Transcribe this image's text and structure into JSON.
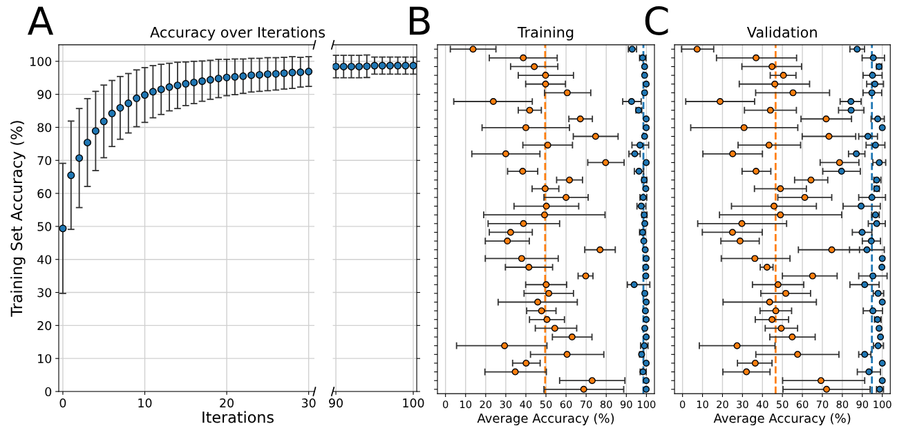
{
  "chart_data": [
    {
      "type": "scatter",
      "title": "Accuracy over Iterations",
      "xlabel": "Iterations",
      "ylabel": "Training Set Accuracy (%)",
      "annotations": [
        "A"
      ],
      "x": [
        0,
        1,
        2,
        3,
        4,
        5,
        6,
        7,
        8,
        9,
        10,
        11,
        12,
        13,
        14,
        15,
        16,
        17,
        18,
        19,
        20,
        21,
        22,
        23,
        24,
        25,
        26,
        27,
        28,
        29,
        30
      ],
      "series": [
        {
          "color": "#1f77b4",
          "values": [
            49.4,
            65.5,
            70.7,
            75.4,
            78.9,
            81.8,
            84.2,
            85.9,
            87.3,
            88.8,
            89.8,
            90.8,
            91.5,
            92.2,
            92.7,
            93.2,
            93.6,
            94.0,
            94.4,
            94.8,
            95.1,
            95.3,
            95.5,
            95.8,
            95.9,
            96.1,
            96.2,
            96.4,
            96.6,
            96.7,
            96.9
          ],
          "errors": [
            19.7,
            16.4,
            15,
            13.3,
            12,
            11,
            10,
            9.5,
            9,
            8.6,
            8.3,
            7.9,
            7.6,
            7.2,
            7,
            6.6,
            6.4,
            6.1,
            5.9,
            5.8,
            5.5,
            5.4,
            5.2,
            5.1,
            5.0,
            5.0,
            4.9,
            4.8,
            4.8,
            4.5,
            4.5
          ]
        }
      ],
      "xlim": [
        -0.5,
        30.7
      ],
      "ylim": [
        0,
        105
      ],
      "xticks": [
        0,
        10,
        20,
        30
      ],
      "yticks": [
        0,
        10,
        20,
        30,
        40,
        50,
        60,
        70,
        80,
        90,
        100
      ],
      "grid": true,
      "marker": "circle"
    },
    {
      "type": "scatter",
      "x": [
        90,
        91,
        92,
        93,
        94,
        95,
        96,
        97,
        98,
        99,
        100
      ],
      "series": [
        {
          "color": "#1f77b4",
          "values": [
            98.4,
            98.4,
            98.4,
            98.4,
            98.5,
            98.7,
            98.7,
            98.7,
            98.7,
            98.7,
            98.7
          ],
          "errors": [
            3.4,
            3.4,
            3.4,
            3.4,
            3.4,
            2.6,
            2.6,
            2.6,
            2.6,
            2.6,
            2.6
          ]
        }
      ],
      "xlim": [
        89.6,
        100.45
      ],
      "ylim": [
        0,
        105
      ],
      "xticks": [
        90,
        100
      ],
      "yticks": [
        0,
        10,
        20,
        30,
        40,
        50,
        60,
        70,
        80,
        90,
        100
      ],
      "tick_labels": "x",
      "grid": true,
      "marker": "circle"
    },
    {
      "type": "scatter",
      "orientation": "horizontal",
      "title": "Training",
      "xlabel": "Average Accuracy (%)",
      "annotations": [
        "B"
      ],
      "categories": [
        null,
        null,
        null,
        null,
        null,
        null,
        null,
        null,
        null,
        null,
        null,
        null,
        null,
        null,
        null,
        null,
        null,
        null,
        null,
        null,
        null,
        null,
        null,
        null,
        null,
        null,
        null,
        null,
        null,
        null,
        null,
        null,
        null,
        null,
        null,
        null,
        null,
        null,
        null,
        null
      ],
      "series": [
        {
          "color": "#ff7f0e",
          "values": [
            13.7,
            38.7,
            44.2,
            49.8,
            49.8,
            60.6,
            23.8,
            41.9,
            67.1,
            40.0,
            74.7,
            50.9,
            30.0,
            79.7,
            38.4,
            61.7,
            49.6,
            60.0,
            50.2,
            49.3,
            38.8,
            32.4,
            30.8,
            76.9,
            37.9,
            41.5,
            69.8,
            50.1,
            51.4,
            45.9,
            47.8,
            50.5,
            54.4,
            63.0,
            29.4,
            60.5,
            40.1,
            34.7,
            73.0,
            68.8
          ],
          "errors": [
            [
              2.4,
              25.1
            ],
            [
              21.8,
              55.6
            ],
            [
              32.4,
              55.9
            ],
            [
              36.2,
              63.7
            ],
            [
              39.9,
              59.7
            ],
            [
              49.3,
              72.3
            ],
            [
              4.1,
              43.2
            ],
            [
              36.2,
              47.7
            ],
            [
              61.4,
              73.1
            ],
            [
              18.2,
              61.7
            ],
            [
              63.6,
              85.9
            ],
            [
              38.5,
              63.2
            ],
            [
              13.1,
              47.0
            ],
            [
              70.8,
              88.9
            ],
            [
              30.9,
              45.9
            ],
            [
              55.3,
              68.2
            ],
            [
              43.1,
              56.4
            ],
            [
              49.0,
              71.0
            ],
            [
              34.1,
              66.3
            ],
            [
              19.0,
              79.4
            ],
            [
              21.2,
              56.8
            ],
            [
              21.8,
              43.2
            ],
            [
              19.8,
              41.7
            ],
            [
              69.3,
              84.5
            ],
            [
              19.8,
              56.1
            ],
            [
              29.8,
              53.3
            ],
            [
              66.0,
              73.4
            ],
            [
              39.9,
              60.3
            ],
            [
              39.1,
              63.7
            ],
            [
              26.2,
              65.6
            ],
            [
              40.4,
              55.0
            ],
            [
              41.8,
              59.2
            ],
            [
              44.7,
              65.3
            ],
            [
              53.2,
              72.9
            ],
            [
              5.5,
              50.5
            ],
            [
              42.3,
              78.8
            ],
            [
              33.4,
              47.1
            ],
            [
              19.6,
              50.2
            ],
            [
              56.8,
              89.3
            ],
            [
              49.0,
              88.7
            ]
          ]
        },
        {
          "color": "#1f77b4",
          "values": [
            92.9,
            98.1,
            99.1,
            99.1,
            99.9,
            99.1,
            92.6,
            96.1,
            99.9,
            99.9,
            99.1,
            96.8,
            94.2,
            99.9,
            96.3,
            98.9,
            99.7,
            98.4,
            97.4,
            98.9,
            99.2,
            98.1,
            98.7,
            99.4,
            99.9,
            99.7,
            99.7,
            93.9,
            99.2,
            99.9,
            99.5,
            99.9,
            99.2,
            99.9,
            99.0,
            97.6,
            99.9,
            98.3,
            99.9,
            99.9
          ],
          "errors": [
            [
              91.0,
              95.1
            ],
            [
              96.6,
              99.8
            ],
            null,
            null,
            null,
            null,
            [
              88.2,
              97.4
            ],
            [
              94.8,
              97.7
            ],
            null,
            null,
            null,
            [
              92.8,
              101.1
            ],
            [
              91.3,
              96.9
            ],
            null,
            [
              94.0,
              98.6
            ],
            [
              97.7,
              100.2
            ],
            null,
            [
              96.8,
              100.2
            ],
            [
              95.3,
              99.7
            ],
            [
              97.7,
              100.3
            ],
            null,
            [
              96.6,
              99.4
            ],
            null,
            null,
            null,
            null,
            null,
            [
              90.5,
              101.7
            ],
            null,
            null,
            null,
            null,
            null,
            null,
            [
              97.1,
              100.8
            ],
            [
              96.6,
              98.6
            ],
            null,
            [
              96.9,
              99.9
            ],
            null,
            null
          ]
        }
      ],
      "ref_lines": [
        {
          "axis": "x",
          "value": 49.6,
          "color": "#ff7f0e",
          "line_style": "dashed"
        },
        {
          "axis": "x",
          "value": 98.5,
          "color": "#1f77b4",
          "line_style": "dashed"
        }
      ],
      "xlim": [
        -4,
        104
      ],
      "xticks": [
        0,
        10,
        20,
        30,
        40,
        50,
        60,
        70,
        80,
        90,
        100
      ],
      "grid": "x",
      "marker": "circle"
    },
    {
      "type": "scatter",
      "orientation": "horizontal",
      "title": "Validation",
      "xlabel": "Average Accuracy (%)",
      "annotations": [
        "C"
      ],
      "categories": [
        null,
        null,
        null,
        null,
        null,
        null,
        null,
        null,
        null,
        null,
        null,
        null,
        null,
        null,
        null,
        null,
        null,
        null,
        null,
        null,
        null,
        null,
        null,
        null,
        null,
        null,
        null,
        null,
        null,
        null,
        null,
        null,
        null,
        null,
        null,
        null,
        null,
        null,
        null,
        null
      ],
      "series": [
        {
          "color": "#ff7f0e",
          "values": [
            7.3,
            36.8,
            44.8,
            50.5,
            46.2,
            55.3,
            18.8,
            44.0,
            71.9,
            30.8,
            73.3,
            43.3,
            25.1,
            78.6,
            36.8,
            64.3,
            49.0,
            61.2,
            45.8,
            49.0,
            29.7,
            25.0,
            28.8,
            74.7,
            36.2,
            42.3,
            65.1,
            47.8,
            51.7,
            43.6,
            46.7,
            44.8,
            49.4,
            54.9,
            27.3,
            57.6,
            36.4,
            32.0,
            69.3,
            72.1
          ],
          "errors": [
            [
              -0.5,
              15.6
            ],
            [
              17.0,
              57.1
            ],
            [
              29.7,
              59.6
            ],
            [
              43.9,
              56.8
            ],
            [
              28.4,
              63.6
            ],
            [
              36.6,
              73.6
            ],
            [
              1.6,
              36.1
            ],
            [
              31.0,
              57.0
            ],
            [
              59.3,
              84.6
            ],
            [
              4.1,
              57.7
            ],
            [
              59.9,
              86.7
            ],
            [
              27.8,
              59.1
            ],
            [
              10.2,
              40.0
            ],
            [
              68.9,
              88.3
            ],
            [
              29.8,
              44.2
            ],
            [
              56.1,
              72.7
            ],
            [
              36.0,
              62.0
            ],
            [
              47.7,
              74.7
            ],
            [
              24.5,
              67.0
            ],
            [
              18.5,
              79.7
            ],
            [
              7.6,
              52.1
            ],
            [
              9.9,
              39.9
            ],
            [
              19.2,
              38.4
            ],
            [
              58.0,
              88.6
            ],
            [
              19.4,
              53.8
            ],
            [
              38.9,
              45.3
            ],
            [
              50.0,
              77.4
            ],
            [
              35.0,
              60.7
            ],
            [
              39.2,
              64.1
            ],
            [
              20.3,
              67.0
            ],
            [
              38.8,
              54.6
            ],
            [
              36.4,
              53.1
            ],
            [
              41.4,
              57.6
            ],
            [
              43.7,
              66.4
            ],
            [
              8.4,
              46.3
            ],
            [
              36.7,
              78.3
            ],
            [
              27.5,
              44.8
            ],
            [
              20.2,
              43.8
            ],
            [
              50.1,
              91.2
            ],
            [
              50.3,
              93.9
            ]
          ]
        },
        {
          "color": "#1f77b4",
          "values": [
            87.4,
            95.5,
            98.4,
            95.1,
            96.3,
            94.8,
            84.3,
            84.4,
            97.7,
            100.0,
            92.8,
            96.6,
            87.0,
            98.5,
            79.6,
            97.2,
            97.2,
            94.8,
            89.4,
            96.6,
            97.2,
            89.9,
            94.5,
            92.3,
            100.0,
            99.8,
            95.3,
            91.2,
            97.9,
            100.0,
            95.3,
            97.6,
            98.4,
            99.1,
            97.9,
            91.2,
            100.0,
            93.3,
            100.0,
            98.7
          ],
          "errors": [
            [
              83.8,
              91.1
            ],
            [
              89.9,
              101.1
            ],
            [
              97.1,
              99.7
            ],
            [
              90.4,
              99.9
            ],
            [
              92.2,
              100.6
            ],
            [
              90.4,
              99.7
            ],
            [
              78.9,
              89.4
            ],
            [
              78.1,
              90.8
            ],
            [
              94.4,
              101.0
            ],
            null,
            [
              88.2,
              97.6
            ],
            [
              91.9,
              101.3
            ],
            [
              83.1,
              91.3
            ],
            [
              95.3,
              101.7
            ],
            [
              70.2,
              89.0
            ],
            [
              95.8,
              99.3
            ],
            [
              95.9,
              98.5
            ],
            [
              88.2,
              101.6
            ],
            [
              80.4,
              99.0
            ],
            [
              94.7,
              98.5
            ],
            [
              93.0,
              101.5
            ],
            [
              85.0,
              94.8
            ],
            [
              90.0,
              99.1
            ],
            [
              83.6,
              101.0
            ],
            null,
            null,
            [
              88.2,
              102.4
            ],
            [
              83.8,
              98.4
            ],
            [
              95.5,
              100.7
            ],
            null,
            [
              90.5,
              100.1
            ],
            [
              96.1,
              99.4
            ],
            null,
            null,
            [
              95.6,
              100.6
            ],
            [
              88.2,
              94.3
            ],
            null,
            [
              87.5,
              99.1
            ],
            null,
            [
              97.1,
              100.6
            ]
          ]
        }
      ],
      "ref_lines": [
        {
          "axis": "x",
          "value": 46.6,
          "color": "#ff7f0e",
          "line_style": "dashed"
        },
        {
          "axis": "x",
          "value": 94.8,
          "color": "#1f77b4",
          "line_style": "dashed"
        }
      ],
      "xlim": [
        -4,
        104
      ],
      "xticks": [
        0,
        10,
        20,
        30,
        40,
        50,
        60,
        70,
        80,
        90,
        100
      ],
      "grid": "x",
      "marker": "circle"
    }
  ]
}
